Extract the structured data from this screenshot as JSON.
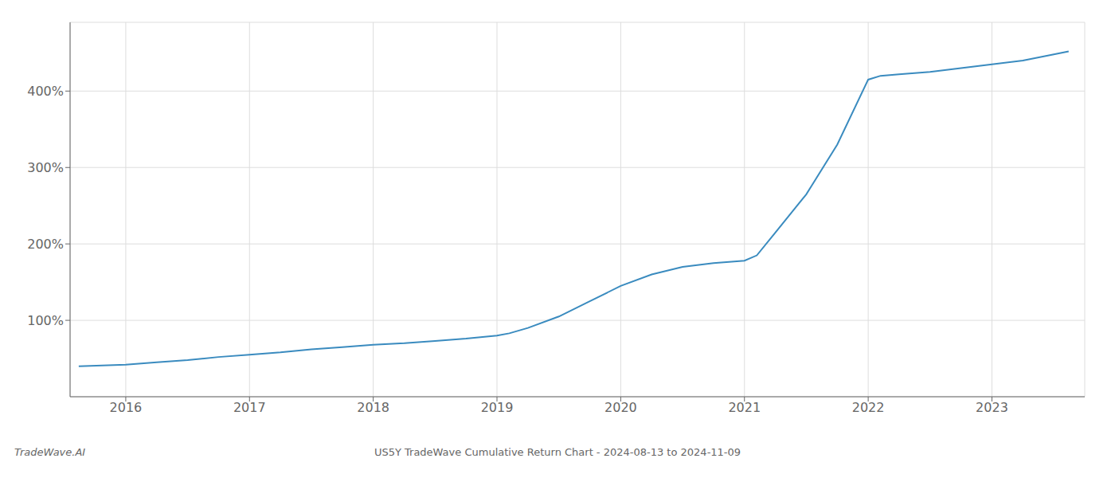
{
  "chart_data": {
    "type": "line",
    "x": [
      2015.62,
      2016.0,
      2016.25,
      2016.5,
      2016.75,
      2017.0,
      2017.25,
      2017.5,
      2017.75,
      2018.0,
      2018.25,
      2018.5,
      2018.75,
      2019.0,
      2019.1,
      2019.25,
      2019.5,
      2019.75,
      2020.0,
      2020.25,
      2020.5,
      2020.75,
      2021.0,
      2021.1,
      2021.25,
      2021.5,
      2021.75,
      2022.0,
      2022.1,
      2022.25,
      2022.5,
      2022.75,
      2023.0,
      2023.25,
      2023.5,
      2023.62
    ],
    "values": [
      40,
      42,
      45,
      48,
      52,
      55,
      58,
      62,
      65,
      68,
      70,
      73,
      76,
      80,
      83,
      90,
      105,
      125,
      145,
      160,
      170,
      175,
      178,
      185,
      215,
      265,
      330,
      415,
      420,
      422,
      425,
      430,
      435,
      440,
      448,
      452
    ],
    "color": "#3a8bbf",
    "xlim": [
      2015.55,
      2023.75
    ],
    "xticks": [
      2016,
      2017,
      2018,
      2019,
      2020,
      2021,
      2022,
      2023
    ],
    "ylim": [
      0,
      490
    ],
    "yticks": [
      {
        "value": 100,
        "label": "100%"
      },
      {
        "value": 200,
        "label": "200%"
      },
      {
        "value": 300,
        "label": "300%"
      },
      {
        "value": 400,
        "label": "400%"
      }
    ],
    "grid": true,
    "annotations": [
      "TradeWave.AI",
      "US5Y TradeWave Cumulative Return Chart - 2024-08-13 to 2024-11-09"
    ]
  }
}
